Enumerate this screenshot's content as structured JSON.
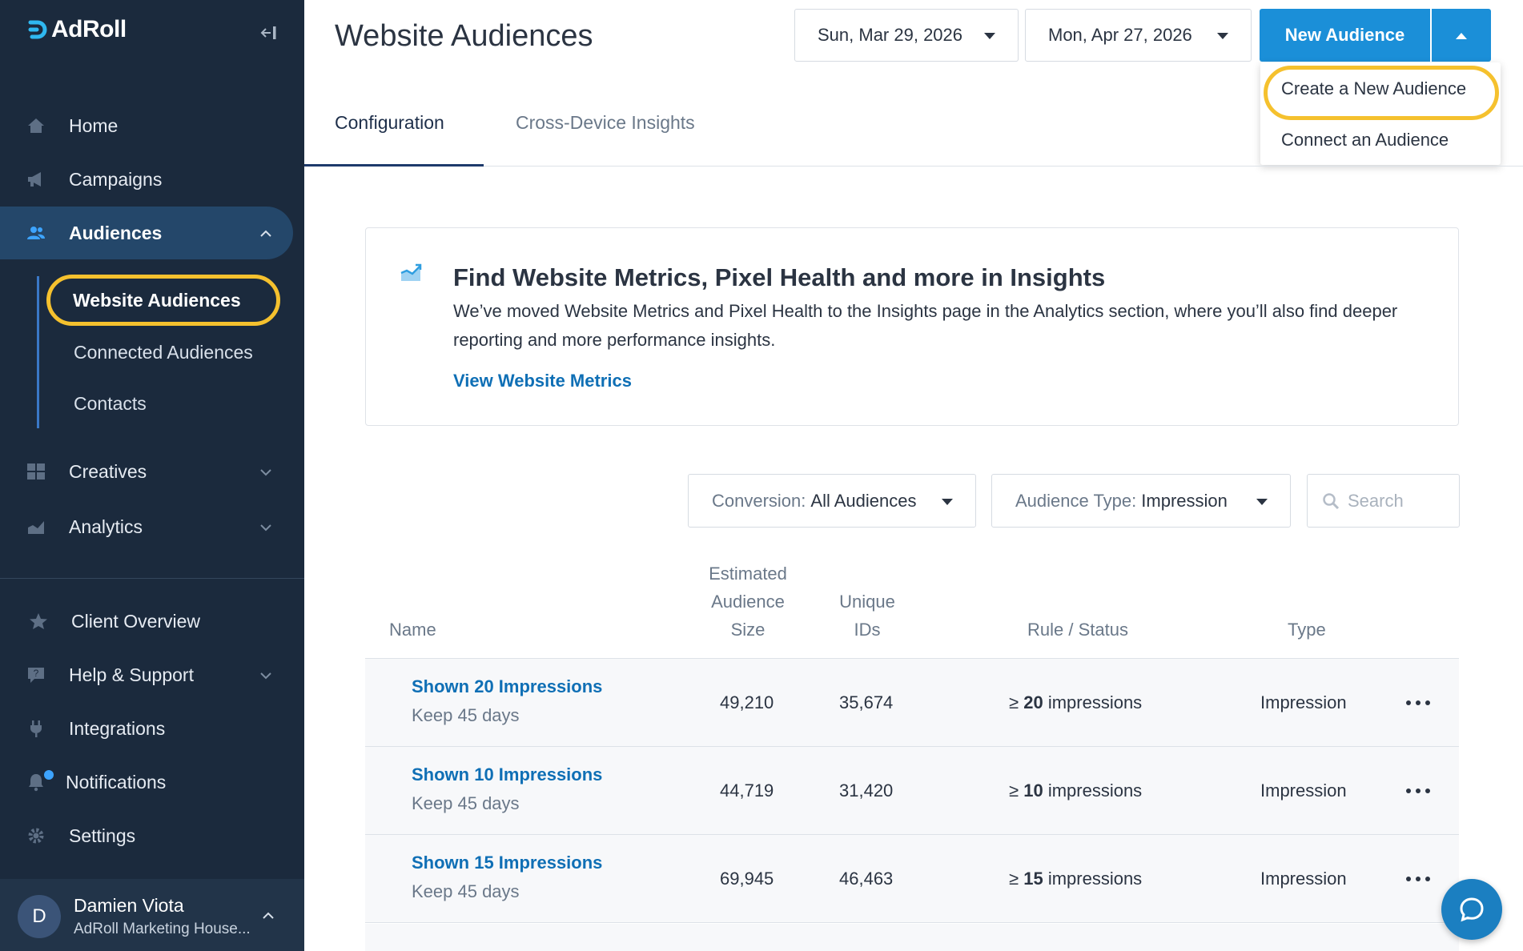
{
  "brand": {
    "name": "AdRoll",
    "accent": "#1b8fd8",
    "highlight": "#f5c12e",
    "sidebar_bg": "#1b2a3d"
  },
  "sidebar": {
    "collapse_icon": "collapse-left-icon",
    "main_items": [
      {
        "label": "Home",
        "icon": "home-icon"
      },
      {
        "label": "Campaigns",
        "icon": "megaphone-icon"
      },
      {
        "label": "Audiences",
        "icon": "people-icon"
      },
      {
        "label": "Creatives",
        "icon": "grid-icon"
      },
      {
        "label": "Analytics",
        "icon": "chart-icon"
      }
    ],
    "audiences_sub": [
      {
        "label": "Website Audiences"
      },
      {
        "label": "Connected Audiences"
      },
      {
        "label": "Contacts"
      }
    ],
    "bottom_items": [
      {
        "label": "Client Overview",
        "icon": "star-icon"
      },
      {
        "label": "Help & Support",
        "icon": "help-icon"
      },
      {
        "label": "Integrations",
        "icon": "plug-icon"
      },
      {
        "label": "Notifications",
        "icon": "bell-icon"
      },
      {
        "label": "Settings",
        "icon": "gear-icon"
      }
    ],
    "user": {
      "initial": "D",
      "name": "Damien Viota",
      "org": "AdRoll Marketing House..."
    }
  },
  "header": {
    "title": "Website Audiences",
    "start_date": "Sun, Mar 29, 2026",
    "end_date": "Mon, Apr 27, 2026",
    "new_audience_label": "New Audience",
    "dropdown": [
      "Create a New Audience",
      "Connect an Audience"
    ]
  },
  "tabs": [
    "Configuration",
    "Cross-Device Insights"
  ],
  "info": {
    "title": "Find Website Metrics, Pixel Health and more in Insights",
    "body": "We’ve moved Website Metrics and Pixel Health to the Insights page in the Analytics section, where you’ll also find deeper reporting and more performance insights.",
    "link": "View Website Metrics"
  },
  "filters": {
    "conversion_label": "Conversion:",
    "conversion_value": "All Audiences",
    "type_label": "Audience Type:",
    "type_value": "Impression",
    "search_placeholder": "Search"
  },
  "table": {
    "headers": {
      "name": "Name",
      "size": [
        "Estimated",
        "Audience",
        "Size"
      ],
      "unique": [
        "Unique",
        "IDs"
      ],
      "rule": "Rule / Status",
      "type": "Type"
    },
    "rows": [
      {
        "name": "Shown 20 Impressions",
        "keep": "Keep 45 days",
        "size": "49,210",
        "unique": "35,674",
        "rule_prefix": "≥",
        "rule_num": "20",
        "rule_suffix": "impressions",
        "type": "Impression"
      },
      {
        "name": "Shown 10 Impressions",
        "keep": "Keep 45 days",
        "size": "44,719",
        "unique": "31,420",
        "rule_prefix": "≥",
        "rule_num": "10",
        "rule_suffix": "impressions",
        "type": "Impression"
      },
      {
        "name": "Shown 15 Impressions",
        "keep": "Keep 45 days",
        "size": "69,945",
        "unique": "46,463",
        "rule_prefix": "≥",
        "rule_num": "15",
        "rule_suffix": "impressions",
        "type": "Impression"
      }
    ]
  }
}
